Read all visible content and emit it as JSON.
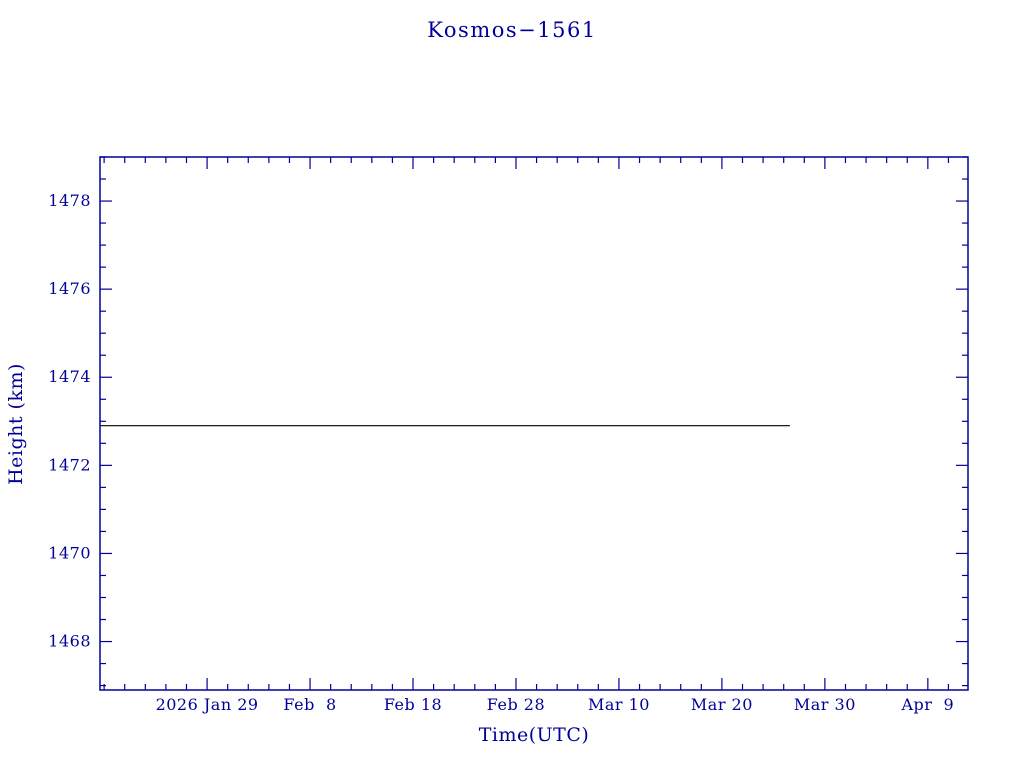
{
  "page": {
    "background": "#ffffff"
  },
  "colors": {
    "axis": "#000099",
    "data_line": "#000000",
    "background": "#ffffff"
  },
  "chart_data": {
    "type": "line",
    "title": "Kosmos−1561",
    "xlabel": "Time(UTC)",
    "ylabel": "Height (km)",
    "x_unit": "days since 2026-01-19 (UTC)",
    "xlim": [
      -0.4,
      83.9
    ],
    "ylim": [
      1466.9,
      1479.0
    ],
    "grid": false,
    "legend": "none",
    "x_ticks": [
      {
        "value": 10,
        "label": "2026 Jan 29"
      },
      {
        "value": 20,
        "label": "Feb  8"
      },
      {
        "value": 30,
        "label": "Feb 18"
      },
      {
        "value": 40,
        "label": "Feb 28"
      },
      {
        "value": 50,
        "label": "Mar 10"
      },
      {
        "value": 60,
        "label": "Mar 20"
      },
      {
        "value": 70,
        "label": "Mar 30"
      },
      {
        "value": 80,
        "label": "Apr  9"
      }
    ],
    "y_ticks": [
      1468,
      1470,
      1472,
      1474,
      1476,
      1478
    ],
    "minor_x_step": 2,
    "minor_y_step": 0.5,
    "series": [
      {
        "name": "height",
        "color": "#000000",
        "description": "Constant satellite height of 1472.9 km from plot left edge until about 2026 Mar 27",
        "points": [
          [
            -0.4,
            1472.9
          ],
          [
            66.6,
            1472.9
          ]
        ]
      }
    ]
  }
}
